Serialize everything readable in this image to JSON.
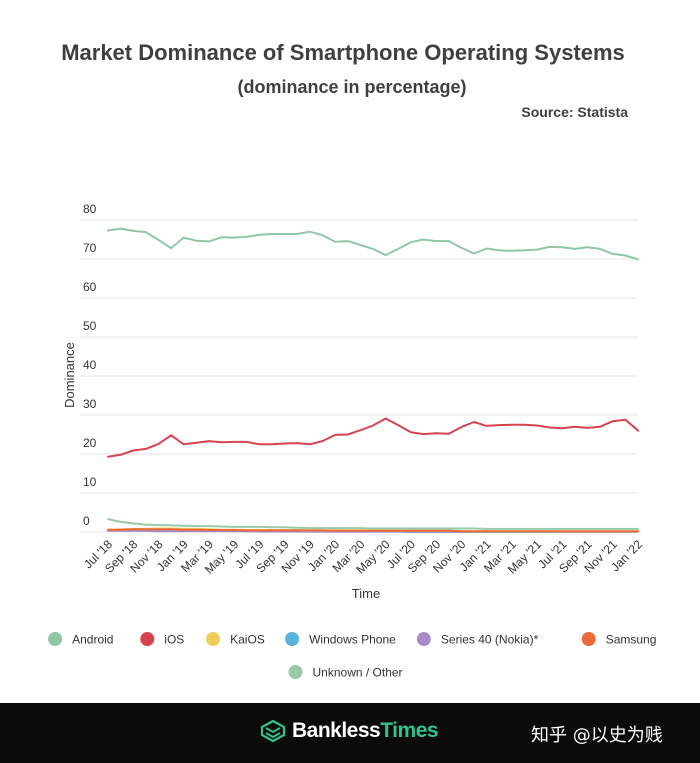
{
  "header": {
    "title": "Market Dominance of Smartphone Operating Systems",
    "subtitle": "(dominance in percentage)",
    "source": "Source: Statista"
  },
  "chart_data": {
    "type": "line",
    "title": "Market Dominance of Smartphone Operating Systems",
    "subtitle": "(dominance in percentage)",
    "xlabel": "Time",
    "ylabel": "Dominance",
    "ylim": [
      0,
      80
    ],
    "yticks": [
      0,
      10,
      20,
      30,
      40,
      50,
      60,
      70,
      80
    ],
    "x": [
      "Jul '18",
      "Aug '18",
      "Sep '18",
      "Oct '18",
      "Nov '18",
      "Dec '18",
      "Jan '19",
      "Feb '19",
      "Mar '19",
      "Apr '19",
      "May '19",
      "Jun '19",
      "Jul '19",
      "Aug '19",
      "Sep '19",
      "Oct '19",
      "Nov '19",
      "Dec '19",
      "Jan '20",
      "Feb '20",
      "Mar '20",
      "Apr '20",
      "May '20",
      "Jun '20",
      "Jul '20",
      "Aug '20",
      "Sep '20",
      "Oct '20",
      "Nov '20",
      "Dec '20",
      "Jan '21",
      "Feb '21",
      "Mar '21",
      "Apr '21",
      "May '21",
      "Jun '21",
      "Jul '21",
      "Aug '21",
      "Sep '21",
      "Oct '21",
      "Nov '21",
      "Dec '21",
      "Jan '22"
    ],
    "xtick_labels": [
      "Jul '18",
      "Sep '18",
      "Nov '18",
      "Jan '19",
      "Mar '19",
      "May '19",
      "Jul '19",
      "Sep '19",
      "Nov '19",
      "Jan '20",
      "Mar '20",
      "May '20",
      "Jul '20",
      "Sep '20",
      "Nov '20",
      "Jan '21",
      "Mar '21",
      "May '21",
      "Jul '21",
      "Sep '21",
      "Nov '21",
      "Jan '22"
    ],
    "series": [
      {
        "name": "Android",
        "color": "#8fc7a8",
        "values": [
          77.3,
          77.8,
          77.2,
          76.9,
          74.9,
          72.8,
          75.5,
          74.7,
          74.5,
          75.6,
          75.5,
          75.7,
          76.2,
          76.4,
          76.4,
          76.4,
          77.0,
          76.1,
          74.4,
          74.6,
          73.6,
          72.6,
          71.0,
          72.6,
          74.3,
          75.0,
          74.6,
          74.6,
          72.9,
          71.4,
          72.7,
          72.2,
          72.1,
          72.2,
          72.4,
          73.1,
          73.0,
          72.6,
          73.0,
          72.6,
          71.3,
          70.9,
          69.9
        ]
      },
      {
        "name": "iOS",
        "color": "#d6434f",
        "values": [
          19.3,
          19.8,
          20.9,
          21.3,
          22.6,
          24.8,
          22.5,
          22.9,
          23.3,
          23.0,
          23.1,
          23.1,
          22.5,
          22.5,
          22.7,
          22.8,
          22.5,
          23.3,
          24.9,
          25.0,
          26.1,
          27.3,
          29.1,
          27.4,
          25.6,
          25.1,
          25.3,
          25.2,
          26.9,
          28.2,
          27.2,
          27.4,
          27.5,
          27.5,
          27.3,
          26.8,
          26.6,
          27.0,
          26.7,
          27.0,
          28.4,
          28.8,
          26.0
        ]
      },
      {
        "name": "KaiOS",
        "color": "#eccd5a",
        "values": [
          0.6,
          0.7,
          0.8,
          0.8,
          0.9,
          0.9,
          0.8,
          0.8,
          0.7,
          0.6,
          0.6,
          0.5,
          0.5,
          0.5,
          0.5,
          0.5,
          0.4,
          0.4,
          0.4,
          0.4,
          0.4,
          0.4,
          0.3,
          0.3,
          0.3,
          0.3,
          0.3,
          0.3,
          0.2,
          0.2,
          0.2,
          0.2,
          0.2,
          0.2,
          0.2,
          0.1,
          0.1,
          0.1,
          0.1,
          0.1,
          0.1,
          0.1,
          0.1
        ]
      },
      {
        "name": "Windows Phone",
        "color": "#59b4e1",
        "values": [
          0.5,
          0.4,
          0.4,
          0.4,
          0.3,
          0.3,
          0.3,
          0.3,
          0.3,
          0.3,
          0.2,
          0.2,
          0.2,
          0.2,
          0.2,
          0.2,
          0.1,
          0.1,
          0.1,
          0.1,
          0.1,
          0.1,
          0.1,
          0.1,
          0.0,
          0.0,
          0.0,
          0.0,
          0.0,
          0.0,
          0.0,
          0.0,
          0.0,
          0.0,
          0.0,
          0.0,
          0.0,
          0.0,
          0.0,
          0.0,
          0.0,
          0.0,
          0.0
        ]
      },
      {
        "name": "Series 40 (Nokia)*",
        "color": "#a78bc9",
        "values": [
          0.3,
          0.3,
          0.3,
          0.3,
          0.2,
          0.2,
          0.2,
          0.2,
          0.2,
          0.2,
          0.2,
          0.2,
          0.1,
          0.1,
          0.1,
          0.1,
          0.1,
          0.1,
          0.1,
          0.1,
          0.1,
          0.1,
          0.1,
          0.1,
          0.1,
          0.1,
          0.1,
          0.1,
          0.1,
          0.1,
          0.1,
          0.1,
          0.1,
          0.1,
          0.1,
          0.1,
          0.1,
          0.1,
          0.1,
          0.1,
          0.1,
          0.1,
          0.1
        ]
      },
      {
        "name": "Samsung",
        "color": "#ec6a3a",
        "values": [
          0.6,
          0.6,
          0.7,
          0.7,
          0.7,
          0.7,
          0.6,
          0.6,
          0.5,
          0.5,
          0.5,
          0.4,
          0.4,
          0.4,
          0.4,
          0.4,
          0.4,
          0.4,
          0.3,
          0.3,
          0.3,
          0.3,
          0.3,
          0.3,
          0.3,
          0.3,
          0.3,
          0.3,
          0.2,
          0.2,
          0.2,
          0.2,
          0.2,
          0.2,
          0.2,
          0.2,
          0.2,
          0.2,
          0.2,
          0.2,
          0.2,
          0.2,
          0.2
        ]
      },
      {
        "name": "Unknown / Other",
        "color": "#97cba8",
        "values": [
          3.3,
          2.6,
          2.2,
          1.9,
          1.8,
          1.7,
          1.6,
          1.5,
          1.5,
          1.4,
          1.3,
          1.3,
          1.3,
          1.2,
          1.2,
          1.1,
          1.0,
          1.0,
          1.0,
          1.0,
          1.0,
          0.9,
          0.9,
          0.9,
          0.9,
          0.9,
          0.9,
          0.9,
          0.9,
          0.9,
          0.8,
          0.8,
          0.8,
          0.8,
          0.8,
          0.8,
          0.8,
          0.8,
          0.8,
          0.8,
          0.8,
          0.8,
          0.8
        ]
      }
    ],
    "legend": [
      "Android",
      "iOS",
      "KaiOS",
      "Windows Phone",
      "Series 40 (Nokia)*",
      "Samsung",
      "Unknown / Other"
    ],
    "grid": true,
    "legend_position": "bottom"
  },
  "footer": {
    "brand_part1": "Bankless",
    "brand_part2": "Times",
    "watermark": "知乎 @以史为贱",
    "brand_color": "#31c48d"
  }
}
